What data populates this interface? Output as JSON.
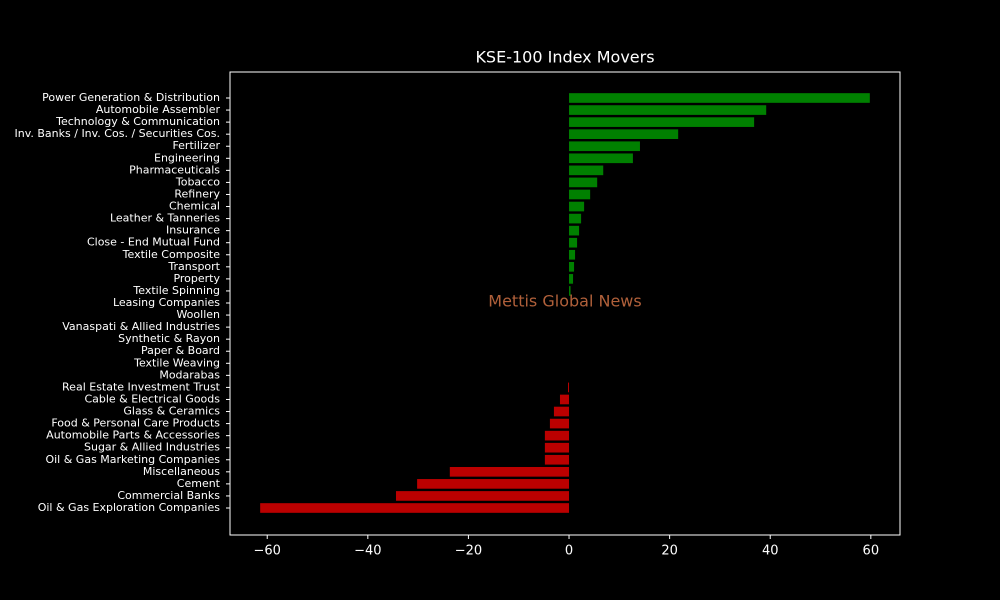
{
  "chart_data": {
    "type": "barh",
    "title": "KSE-100 Index Movers",
    "watermark": "Mettis Global News",
    "watermark_color": "#b0603a",
    "categories": [
      "Power Generation & Distribution",
      "Automobile Assembler",
      "Technology & Communication",
      "Inv. Banks / Inv. Cos. / Securities Cos.",
      "Fertilizer",
      "Engineering",
      "Pharmaceuticals",
      "Tobacco",
      "Refinery",
      "Chemical",
      "Leather & Tanneries",
      "Insurance",
      "Close - End Mutual Fund",
      "Textile Composite",
      "Transport",
      "Property",
      "Textile Spinning",
      "Leasing Companies",
      "Woollen",
      "Vanaspati & Allied Industries",
      "Synthetic & Rayon",
      "Paper & Board",
      "Textile Weaving",
      "Modarabas",
      "Real Estate Investment Trust",
      "Cable & Electrical Goods",
      "Glass & Ceramics",
      "Food & Personal Care Products",
      "Automobile Parts & Accessories",
      "Sugar & Allied Industries",
      "Oil & Gas Marketing Companies",
      "Miscellaneous",
      "Cement",
      "Commercial Banks",
      "Oil & Gas Exploration Companies"
    ],
    "values": [
      59.8,
      39.2,
      36.8,
      21.7,
      14.1,
      12.7,
      6.8,
      5.6,
      4.2,
      3.0,
      2.4,
      2.0,
      1.6,
      1.2,
      1.0,
      0.8,
      0.3,
      0,
      0,
      0,
      0,
      0,
      0,
      0,
      -0.2,
      -1.8,
      -3.0,
      -3.8,
      -4.8,
      -4.8,
      -4.8,
      -23.7,
      -30.2,
      -34.4,
      -61.4
    ],
    "positive_color": "#008000",
    "negative_color": "#bb0000",
    "xlim": [
      -67.4,
      65.8
    ],
    "xticks": [
      {
        "value": -60,
        "label": "−60"
      },
      {
        "value": -40,
        "label": "−40"
      },
      {
        "value": -20,
        "label": "−20"
      },
      0,
      20,
      40,
      60
    ]
  }
}
